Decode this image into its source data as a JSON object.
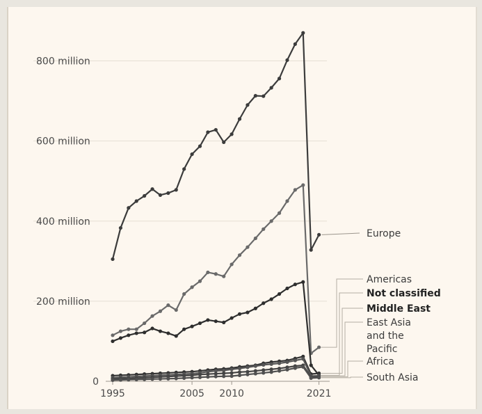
{
  "chart_data": {
    "type": "line",
    "title": "",
    "xlabel": "",
    "ylabel": "",
    "xlim": [
      1995,
      2022
    ],
    "ylim": [
      0,
      900000000
    ],
    "grid": true,
    "legend": "right, inline labels at line ends",
    "y_ticks": [
      {
        "value": 0,
        "label": "0"
      },
      {
        "value": 200000000,
        "label": "200 million"
      },
      {
        "value": 400000000,
        "label": "400 million"
      },
      {
        "value": 600000000,
        "label": "600 million"
      },
      {
        "value": 800000000,
        "label": "800 million"
      }
    ],
    "x_ticks": [
      {
        "value": 1995,
        "label": "1995"
      },
      {
        "value": 2005,
        "label": "2005"
      },
      {
        "value": 2010,
        "label": "2010"
      },
      {
        "value": 2021,
        "label": "2021"
      }
    ],
    "x": [
      1995,
      1996,
      1997,
      1998,
      1999,
      2000,
      2001,
      2002,
      2003,
      2004,
      2005,
      2006,
      2007,
      2008,
      2009,
      2010,
      2011,
      2012,
      2013,
      2014,
      2015,
      2016,
      2017,
      2018,
      2019,
      2020,
      2021
    ],
    "series": [
      {
        "name": "Europe",
        "color": "#3c3c3c",
        "values": [
          305000000,
          383000000,
          433000000,
          450000000,
          463000000,
          480000000,
          465000000,
          470000000,
          478000000,
          530000000,
          567000000,
          587000000,
          622000000,
          628000000,
          597000000,
          617000000,
          655000000,
          690000000,
          713000000,
          712000000,
          733000000,
          756000000,
          802000000,
          842000000,
          870000000,
          328000000,
          366000000
        ]
      },
      {
        "name": "Americas",
        "color": "#6a6a6a",
        "values": [
          115000000,
          125000000,
          130000000,
          130000000,
          145000000,
          163000000,
          175000000,
          190000000,
          178000000,
          218000000,
          235000000,
          250000000,
          272000000,
          268000000,
          262000000,
          292000000,
          315000000,
          335000000,
          357000000,
          380000000,
          400000000,
          420000000,
          450000000,
          478000000,
          490000000,
          70000000,
          85000000
        ]
      },
      {
        "name": "Not classified",
        "color": "#2e2e2e",
        "values": [
          100000000,
          108000000,
          115000000,
          120000000,
          122000000,
          132000000,
          125000000,
          120000000,
          113000000,
          130000000,
          137000000,
          145000000,
          153000000,
          150000000,
          147000000,
          158000000,
          168000000,
          172000000,
          182000000,
          195000000,
          205000000,
          218000000,
          232000000,
          242000000,
          248000000,
          40000000,
          15000000
        ]
      },
      {
        "name": "Middle East",
        "color": "#333333",
        "values": [
          14000000,
          15000000,
          16000000,
          17000000,
          18000000,
          19000000,
          20000000,
          21000000,
          22000000,
          23000000,
          24000000,
          26000000,
          28000000,
          30000000,
          31000000,
          33000000,
          36000000,
          38000000,
          40000000,
          45000000,
          48000000,
          50000000,
          52000000,
          57000000,
          62000000,
          18000000,
          20000000
        ]
      },
      {
        "name": "East Asia and the Pacific",
        "color": "#555555",
        "values": [
          9000000,
          10000000,
          11000000,
          12000000,
          13000000,
          14000000,
          15000000,
          16000000,
          17000000,
          18000000,
          19000000,
          21000000,
          24000000,
          26000000,
          27000000,
          30000000,
          32000000,
          35000000,
          38000000,
          41000000,
          43000000,
          45000000,
          48000000,
          52000000,
          56000000,
          13000000,
          14000000
        ]
      },
      {
        "name": "Africa",
        "color": "#444444",
        "values": [
          6000000,
          6500000,
          7000000,
          8000000,
          9000000,
          10000000,
          11000000,
          12000000,
          13000000,
          14000000,
          15000000,
          17000000,
          18000000,
          19000000,
          20000000,
          21000000,
          23000000,
          24000000,
          26000000,
          28000000,
          30000000,
          32000000,
          35000000,
          38000000,
          40000000,
          10000000,
          11000000
        ]
      },
      {
        "name": "South Asia",
        "color": "#505050",
        "values": [
          3000000,
          3500000,
          4000000,
          4500000,
          5000000,
          5500000,
          6000000,
          6500000,
          7000000,
          8000000,
          9000000,
          10000000,
          11000000,
          12000000,
          12500000,
          13000000,
          15000000,
          17000000,
          19000000,
          21000000,
          23000000,
          26000000,
          29000000,
          33000000,
          36000000,
          8000000,
          9000000
        ]
      }
    ]
  }
}
